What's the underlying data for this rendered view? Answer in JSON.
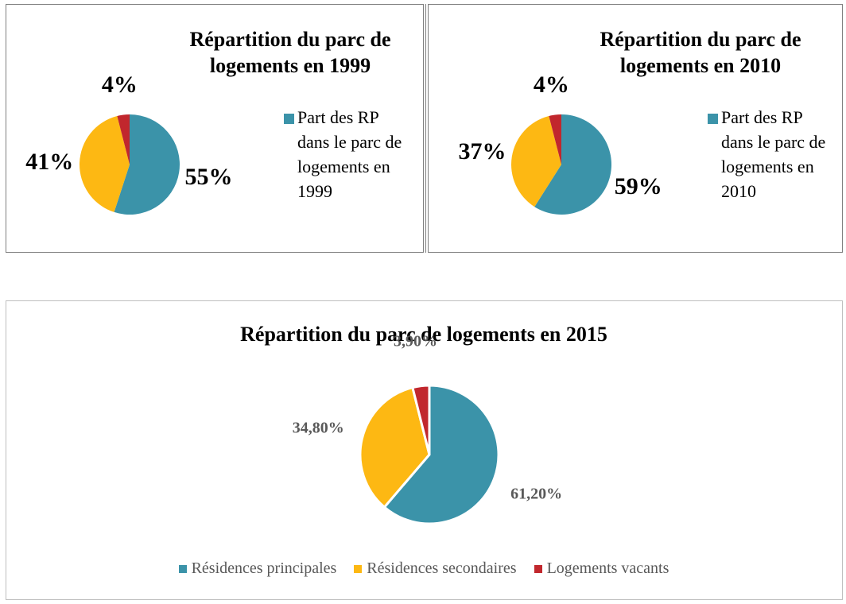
{
  "chart_data": [
    {
      "type": "pie",
      "title": "Répartition du parc de logements en 1999",
      "categories": [
        "Part des RP dans le parc de logements en 1999",
        null,
        null
      ],
      "values": [
        55,
        41,
        4
      ],
      "value_labels": [
        "55%",
        "41%",
        "4%"
      ],
      "colors": [
        "#3b93a9",
        "#fdb813",
        "#c1272d"
      ]
    },
    {
      "type": "pie",
      "title": "Répartition du parc de logements en 2010",
      "categories": [
        "Part des RP dans le parc de logements en 2010",
        null,
        null
      ],
      "values": [
        59,
        37,
        4
      ],
      "value_labels": [
        "59%",
        "37%",
        "4%"
      ],
      "colors": [
        "#3b93a9",
        "#fdb813",
        "#c1272d"
      ]
    },
    {
      "type": "pie",
      "title": "Répartition du parc de logements en 2015",
      "categories": [
        "Résidences principales",
        "Résidences secondaires",
        "Logements vacants"
      ],
      "values": [
        61.2,
        34.8,
        3.9
      ],
      "value_labels": [
        "61,20%",
        "34,80%",
        "3,90%"
      ],
      "colors": [
        "#3b93a9",
        "#fdb813",
        "#c1272d"
      ]
    }
  ]
}
